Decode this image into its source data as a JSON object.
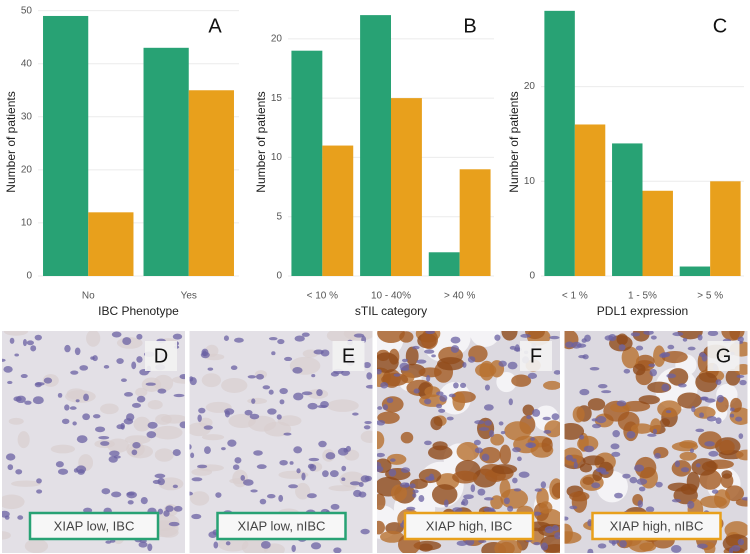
{
  "chart_data": [
    {
      "type": "bar",
      "annotation": "A",
      "x_label": "IBC Phenotype",
      "y_label": "Number of patients",
      "categories": [
        "No",
        "Yes"
      ],
      "series": [
        {
          "color": "#28a274",
          "values": [
            49,
            43
          ]
        },
        {
          "color": "#e8a01c",
          "values": [
            12,
            35
          ]
        }
      ],
      "ylim": [
        0,
        50.5
      ],
      "yticks": [
        0,
        10,
        20,
        30,
        40,
        50
      ],
      "grid": true
    },
    {
      "type": "bar",
      "annotation": "B",
      "x_label": "sTIL category",
      "y_label": "Number of patients",
      "categories": [
        "< 10 %",
        "10 - 40%",
        "> 40 %"
      ],
      "series": [
        {
          "color": "#28a274",
          "values": [
            19,
            22,
            2
          ]
        },
        {
          "color": "#e8a01c",
          "values": [
            11,
            15,
            9
          ]
        }
      ],
      "ylim": [
        0,
        22.6
      ],
      "yticks": [
        0,
        5,
        10,
        15,
        20
      ],
      "grid": true
    },
    {
      "type": "bar",
      "annotation": "C",
      "x_label": "PDL1 expression",
      "y_label": "Number of patients",
      "categories": [
        "< 1 %",
        "1 - 5%",
        "> 5 %"
      ],
      "series": [
        {
          "color": "#28a274",
          "values": [
            28,
            14,
            1
          ]
        },
        {
          "color": "#e8a01c",
          "values": [
            16,
            9,
            10
          ]
        }
      ],
      "ylim": [
        0,
        28.3
      ],
      "yticks": [
        0,
        10,
        20
      ],
      "grid": true
    }
  ],
  "panels": [
    {
      "letter": "D",
      "caption": "XIAP low, IBC",
      "color": "#28a274"
    },
    {
      "letter": "E",
      "caption": "XIAP low, nIBC",
      "color": "#28a274"
    },
    {
      "letter": "F",
      "caption": "XIAP high, IBC",
      "color": "#e8a01c"
    },
    {
      "letter": "G",
      "caption": "XIAP high, nIBC",
      "color": "#e8a01c"
    }
  ]
}
